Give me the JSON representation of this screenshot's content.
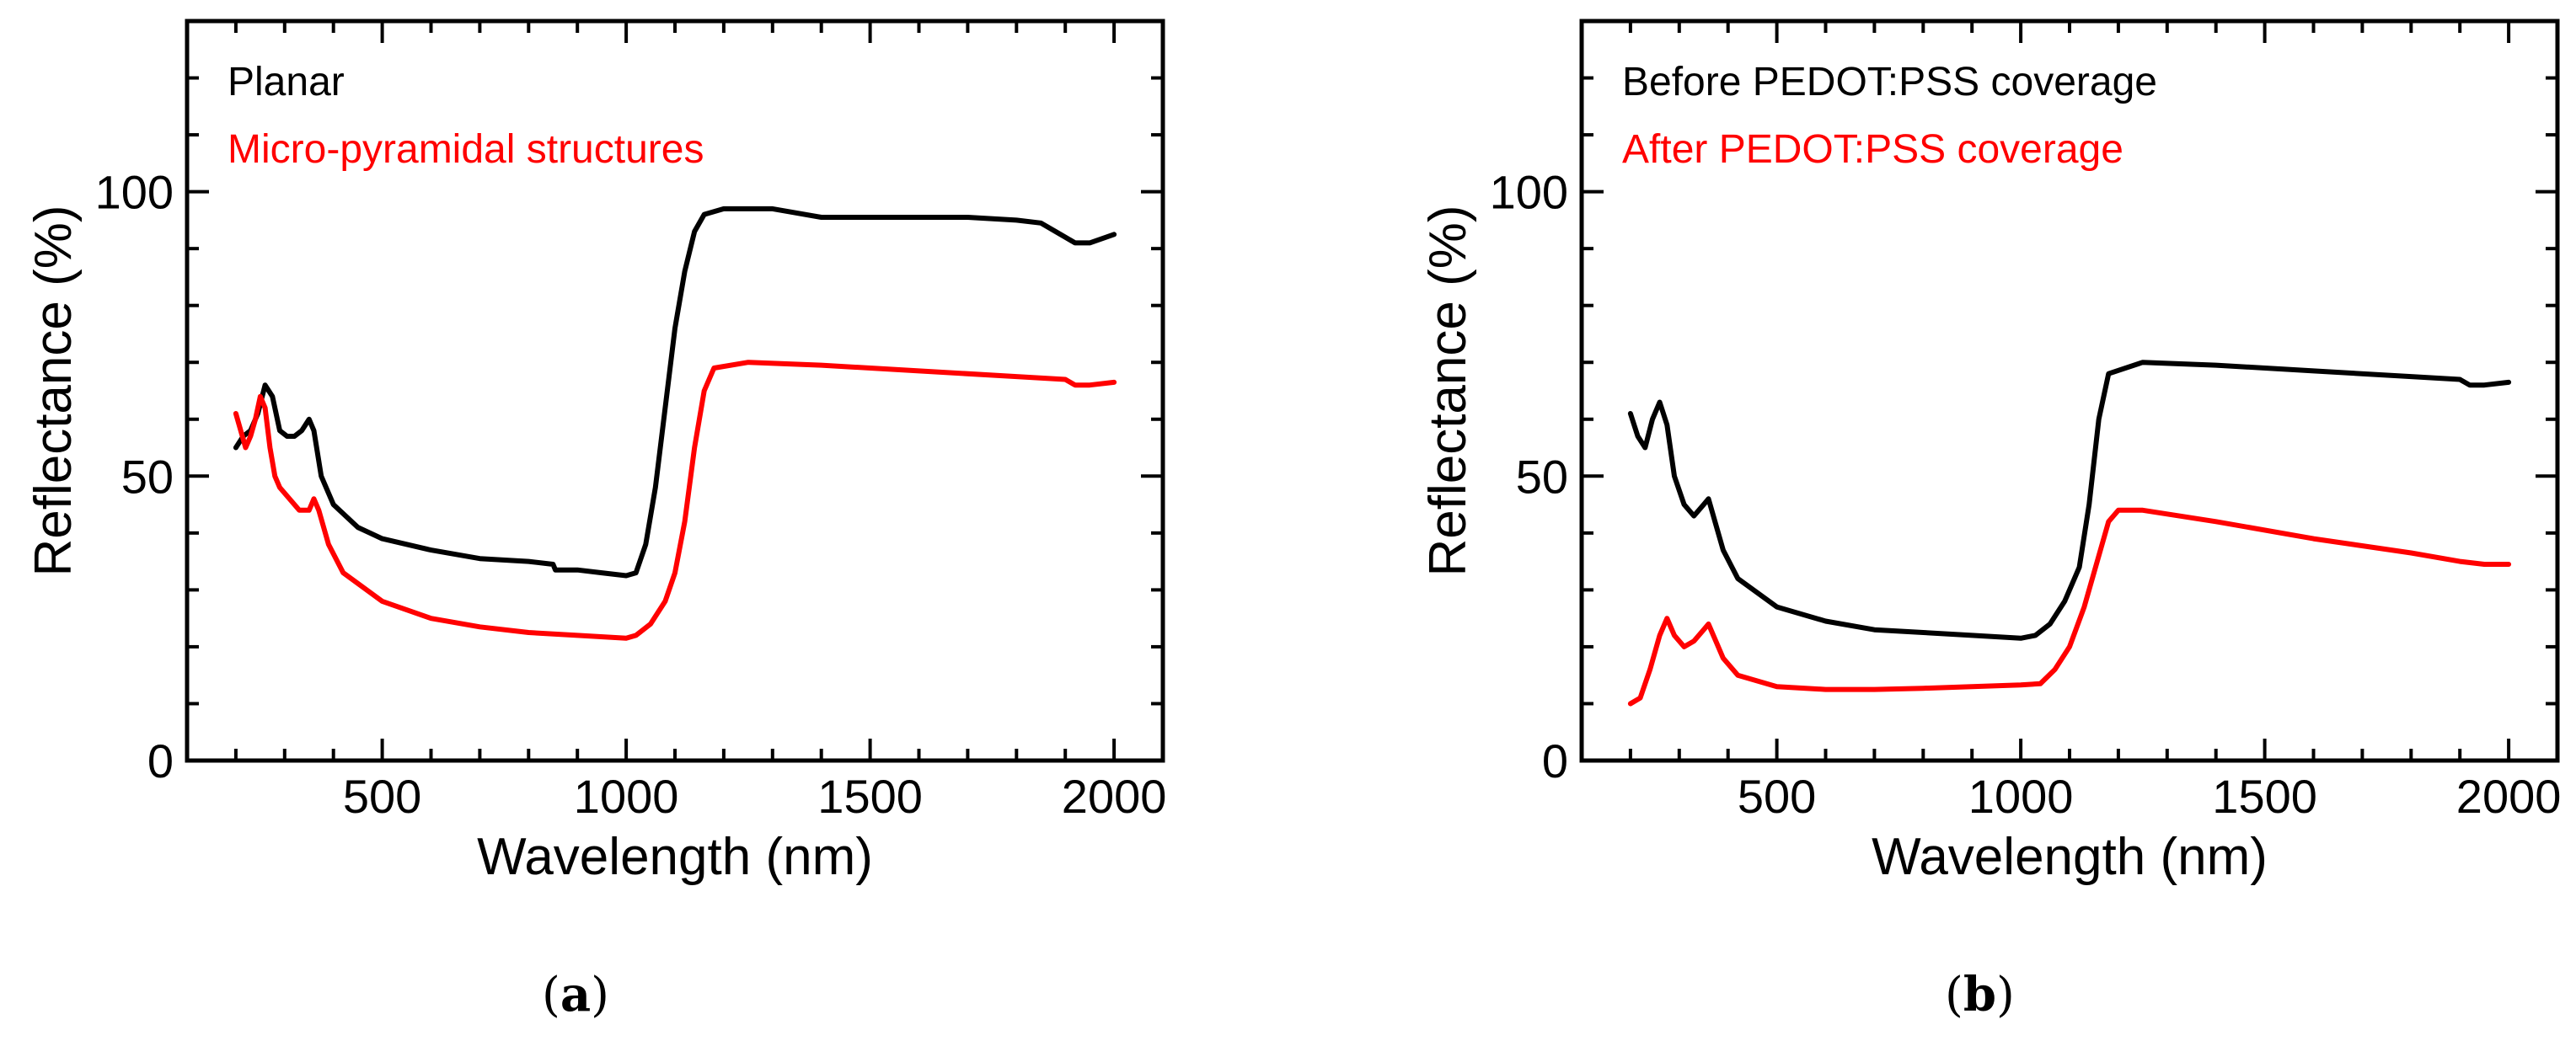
{
  "chart_data": [
    {
      "type": "line",
      "panel": "a",
      "caption": {
        "open": "(",
        "letter": "a",
        "close": ")"
      },
      "title": "",
      "xlabel": "Wavelength (nm)",
      "ylabel": "Reflectance (%)",
      "xlim": [
        100,
        2100
      ],
      "ylim": [
        0,
        130
      ],
      "xticks": [
        500,
        1000,
        1500,
        2000
      ],
      "xtick_labels": [
        "500",
        "1000",
        "1500",
        "2000"
      ],
      "yticks": [
        0,
        50,
        100
      ],
      "ytick_labels": [
        "0",
        "50",
        "100"
      ],
      "legend_position": "top-left",
      "series": [
        {
          "name": "Planar",
          "color": "#000000",
          "points": [
            [
              200,
              55
            ],
            [
              215,
              57
            ],
            [
              230,
              58
            ],
            [
              245,
              61
            ],
            [
              260,
              66
            ],
            [
              275,
              64
            ],
            [
              290,
              58
            ],
            [
              305,
              57
            ],
            [
              320,
              57
            ],
            [
              335,
              58
            ],
            [
              350,
              60
            ],
            [
              360,
              58
            ],
            [
              375,
              50
            ],
            [
              400,
              45
            ],
            [
              450,
              41
            ],
            [
              500,
              39
            ],
            [
              600,
              37
            ],
            [
              700,
              35.5
            ],
            [
              800,
              35
            ],
            [
              850,
              34.5
            ],
            [
              855,
              33.5
            ],
            [
              900,
              33.5
            ],
            [
              950,
              33
            ],
            [
              1000,
              32.5
            ],
            [
              1020,
              33
            ],
            [
              1040,
              38
            ],
            [
              1060,
              48
            ],
            [
              1080,
              62
            ],
            [
              1100,
              76
            ],
            [
              1120,
              86
            ],
            [
              1140,
              93
            ],
            [
              1160,
              96
            ],
            [
              1200,
              97
            ],
            [
              1300,
              97
            ],
            [
              1400,
              95.5
            ],
            [
              1500,
              95.5
            ],
            [
              1600,
              95.5
            ],
            [
              1700,
              95.5
            ],
            [
              1800,
              95
            ],
            [
              1850,
              94.5
            ],
            [
              1880,
              93
            ],
            [
              1900,
              92
            ],
            [
              1920,
              91
            ],
            [
              1950,
              91
            ],
            [
              2000,
              92.5
            ]
          ]
        },
        {
          "name": "Micro-pyramidal structures",
          "color": "#ff0000",
          "points": [
            [
              200,
              61
            ],
            [
              210,
              58
            ],
            [
              220,
              55
            ],
            [
              230,
              57
            ],
            [
              240,
              60
            ],
            [
              250,
              64
            ],
            [
              260,
              62
            ],
            [
              270,
              55
            ],
            [
              280,
              50
            ],
            [
              290,
              48
            ],
            [
              310,
              46
            ],
            [
              330,
              44
            ],
            [
              350,
              44
            ],
            [
              360,
              46
            ],
            [
              370,
              44
            ],
            [
              390,
              38
            ],
            [
              420,
              33
            ],
            [
              500,
              28
            ],
            [
              600,
              25
            ],
            [
              700,
              23.5
            ],
            [
              800,
              22.5
            ],
            [
              900,
              22
            ],
            [
              1000,
              21.5
            ],
            [
              1020,
              22
            ],
            [
              1050,
              24
            ],
            [
              1080,
              28
            ],
            [
              1100,
              33
            ],
            [
              1120,
              42
            ],
            [
              1140,
              55
            ],
            [
              1160,
              65
            ],
            [
              1180,
              69
            ],
            [
              1250,
              70
            ],
            [
              1400,
              69.5
            ],
            [
              1600,
              68.5
            ],
            [
              1800,
              67.5
            ],
            [
              1900,
              67
            ],
            [
              1920,
              66
            ],
            [
              1950,
              66
            ],
            [
              2000,
              66.5
            ]
          ]
        }
      ]
    },
    {
      "type": "line",
      "panel": "b",
      "caption": {
        "open": "(",
        "letter": "b",
        "close": ")"
      },
      "title": "",
      "xlabel": "Wavelength (nm)",
      "ylabel": "Reflectance (%)",
      "xlim": [
        100,
        2100
      ],
      "ylim": [
        0,
        130
      ],
      "xticks": [
        500,
        1000,
        1500,
        2000
      ],
      "xtick_labels": [
        "500",
        "1000",
        "1500",
        "2000"
      ],
      "yticks": [
        0,
        50,
        100
      ],
      "ytick_labels": [
        "0",
        "50",
        "100"
      ],
      "legend_position": "top-left",
      "series": [
        {
          "name": "Before PEDOT:PSS coverage",
          "color": "#000000",
          "points": [
            [
              200,
              61
            ],
            [
              215,
              57
            ],
            [
              230,
              55
            ],
            [
              245,
              60
            ],
            [
              260,
              63
            ],
            [
              275,
              59
            ],
            [
              290,
              50
            ],
            [
              310,
              45
            ],
            [
              330,
              43
            ],
            [
              350,
              45
            ],
            [
              360,
              46
            ],
            [
              370,
              43
            ],
            [
              390,
              37
            ],
            [
              420,
              32
            ],
            [
              500,
              27
            ],
            [
              600,
              24.5
            ],
            [
              700,
              23
            ],
            [
              800,
              22.5
            ],
            [
              900,
              22
            ],
            [
              1000,
              21.5
            ],
            [
              1030,
              22
            ],
            [
              1060,
              24
            ],
            [
              1090,
              28
            ],
            [
              1120,
              34
            ],
            [
              1140,
              45
            ],
            [
              1160,
              60
            ],
            [
              1180,
              68
            ],
            [
              1250,
              70
            ],
            [
              1400,
              69.5
            ],
            [
              1600,
              68.5
            ],
            [
              1800,
              67.5
            ],
            [
              1900,
              67
            ],
            [
              1920,
              66
            ],
            [
              1950,
              66
            ],
            [
              2000,
              66.5
            ]
          ]
        },
        {
          "name": "After PEDOT:PSS coverage",
          "color": "#ff0000",
          "points": [
            [
              200,
              10
            ],
            [
              220,
              11
            ],
            [
              240,
              16
            ],
            [
              260,
              22
            ],
            [
              275,
              25
            ],
            [
              290,
              22
            ],
            [
              310,
              20
            ],
            [
              330,
              21
            ],
            [
              350,
              23
            ],
            [
              360,
              24
            ],
            [
              370,
              22
            ],
            [
              390,
              18
            ],
            [
              420,
              15
            ],
            [
              500,
              13
            ],
            [
              600,
              12.5
            ],
            [
              700,
              12.5
            ],
            [
              800,
              12.7
            ],
            [
              900,
              13
            ],
            [
              1000,
              13.3
            ],
            [
              1040,
              13.5
            ],
            [
              1070,
              16
            ],
            [
              1100,
              20
            ],
            [
              1130,
              27
            ],
            [
              1160,
              36
            ],
            [
              1180,
              42
            ],
            [
              1200,
              44
            ],
            [
              1250,
              44
            ],
            [
              1400,
              42
            ],
            [
              1600,
              39
            ],
            [
              1800,
              36.5
            ],
            [
              1900,
              35
            ],
            [
              1950,
              34.5
            ],
            [
              2000,
              34.5
            ]
          ]
        }
      ]
    }
  ]
}
